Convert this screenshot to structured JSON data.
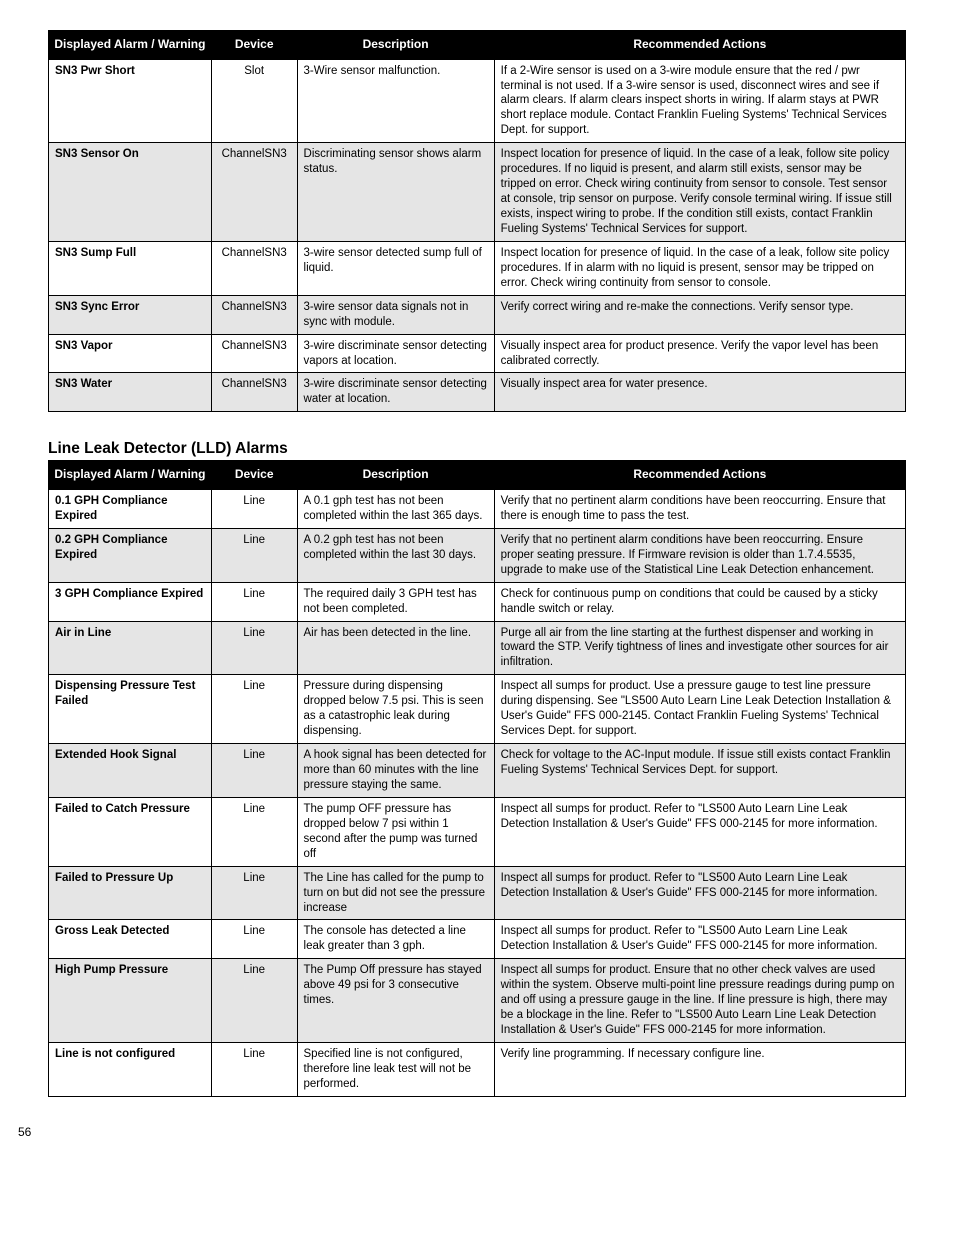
{
  "page_number": "56",
  "tables": [
    {
      "title": null,
      "headers": [
        "Displayed Alarm / Warning",
        "Device",
        "Description",
        "Recommended Actions"
      ],
      "rows": [
        {
          "alarm": "SN3 Pwr Short",
          "device": "Slot",
          "desc": "3-Wire sensor malfunction.",
          "action": "If a 2-Wire sensor is used on a 3-wire module ensure that the red / pwr terminal is not used. If a 3-wire sensor is used, disconnect wires and see if alarm clears. If alarm clears inspect shorts in wiring. If alarm stays at PWR short replace module. Contact Franklin Fueling Systems' Technical Services Dept. for support."
        },
        {
          "alarm": "SN3 Sensor On",
          "device": "ChannelSN3",
          "desc": "Discriminating sensor shows alarm status.",
          "action": "Inspect location for presence of liquid. In the case of a leak, follow site policy procedures. If no liquid is present, and alarm still exists, sensor may be tripped on error. Check wiring continuity from sensor to console. Test sensor at console, trip sensor on purpose. Verify console terminal wiring. If issue still exists, inspect wiring to probe. If the condition still exists, contact Franklin Fueling Systems' Technical Services for support."
        },
        {
          "alarm": "SN3 Sump Full",
          "device": "ChannelSN3",
          "desc": "3-wire sensor detected sump full of liquid.",
          "action": "Inspect location for presence of liquid. In the case of a leak, follow site policy procedures. If in alarm with no liquid is present, sensor may be tripped on error. Check wiring continuity from sensor to console."
        },
        {
          "alarm": "SN3 Sync Error",
          "device": "ChannelSN3",
          "desc": "3-wire sensor data signals not in sync with module.",
          "action": "Verify correct wiring and re-make the connections. Verify sensor type."
        },
        {
          "alarm": "SN3 Vapor",
          "device": "ChannelSN3",
          "desc": "3-wire discriminate sensor detecting vapors at location.",
          "action": "Visually inspect area for product presence. Verify the vapor level has been calibrated correctly."
        },
        {
          "alarm": "SN3 Water",
          "device": "ChannelSN3",
          "desc": "3-wire discriminate sensor detecting water at location.",
          "action": "Visually inspect area for water presence."
        }
      ]
    },
    {
      "title": "Line Leak Detector (LLD) Alarms",
      "headers": [
        "Displayed Alarm / Warning",
        "Device",
        "Description",
        "Recommended Actions"
      ],
      "rows": [
        {
          "alarm": "0.1 GPH Compliance Expired",
          "device": "Line",
          "desc": "A 0.1 gph test has not been completed within the last 365 days.",
          "action": "Verify that no pertinent alarm conditions have been reoccurring. Ensure that there is enough time to pass the test."
        },
        {
          "alarm": "0.2 GPH Compliance Expired",
          "device": "Line",
          "desc": "A 0.2 gph test has not been completed within the last 30 days.",
          "action": "Verify that no pertinent alarm conditions have been reoccurring. Ensure proper seating pressure. If Firmware revision is older than 1.7.4.5535, upgrade to make use of the Statistical Line Leak Detection enhancement."
        },
        {
          "alarm": "3 GPH Compliance Expired",
          "device": "Line",
          "desc": "The required daily 3 GPH test has not been completed.",
          "action": "Check for continuous pump on conditions that could be caused by a sticky handle switch or relay."
        },
        {
          "alarm": "Air in Line",
          "device": "Line",
          "desc": "Air has been detected in the line.",
          "action": "Purge all air from the line starting at the furthest dispenser and working in toward the STP. Verify tightness of lines and investigate other sources for air infiltration."
        },
        {
          "alarm": "Dispensing Pressure Test Failed",
          "device": "Line",
          "desc": "Pressure during dispensing dropped below 7.5 psi. This is seen as a catastrophic leak during dispensing.",
          "action": "Inspect all sumps for product. Use a pressure gauge to test line pressure during dispensing. See \"LS500 Auto Learn Line Leak Detection Installation & User's Guide\" FFS 000-2145. Contact Franklin Fueling Systems' Technical Services Dept. for support."
        },
        {
          "alarm": "Extended Hook Signal",
          "device": "Line",
          "desc": "A hook signal has been detected for more than 60 minutes with the line pressure staying the same.",
          "action": "Check for voltage to the AC-Input module. If issue still exists contact Franklin Fueling Systems' Technical Services Dept. for support."
        },
        {
          "alarm": "Failed to Catch Pressure",
          "device": "Line",
          "desc": "The pump OFF pressure has dropped below 7 psi within 1 second after the pump was turned off",
          "action": "Inspect all sumps for product. Refer to \"LS500 Auto Learn Line Leak Detection Installation & User's Guide\" FFS 000-2145 for more information."
        },
        {
          "alarm": "Failed to Pressure Up",
          "device": "Line",
          "desc": "The Line has called for the pump to turn on but did not see the pressure increase",
          "action": "Inspect all sumps for product. Refer to \"LS500 Auto Learn Line Leak Detection Installation & User's Guide\" FFS 000-2145 for more information."
        },
        {
          "alarm": "Gross Leak Detected",
          "device": "Line",
          "desc": "The console has detected a line leak greater than 3 gph.",
          "action": "Inspect all sumps for product. Refer to \"LS500 Auto Learn Line Leak Detection Installation & User's Guide\" FFS 000-2145 for more information."
        },
        {
          "alarm": "High Pump Pressure",
          "device": "Line",
          "desc": "The Pump Off pressure has stayed above 49 psi for 3 consecutive times.",
          "action": "Inspect all sumps for product. Ensure that no other check valves are used within the system. Observe multi-point line pressure readings during pump on and off using a pressure gauge in the line. If line pressure is high, there may be a blockage in the line. Refer to \"LS500 Auto Learn Line Leak Detection Installation & User's Guide\" FFS 000-2145 for more information."
        },
        {
          "alarm": "Line is not configured",
          "device": "Line",
          "desc": "Specified line is not configured, therefore line leak test will not be performed.",
          "action": "Verify line programming. If necessary configure line."
        }
      ]
    }
  ]
}
